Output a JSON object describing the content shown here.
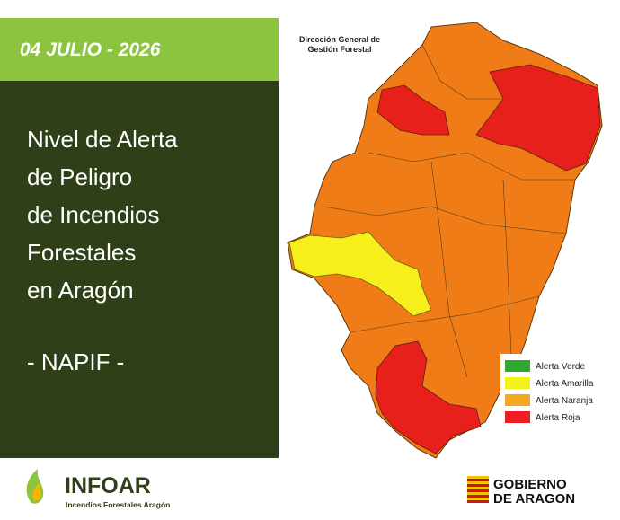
{
  "header": {
    "date": "04 JULIO - 2026"
  },
  "panel": {
    "title_lines": [
      "Nivel de Alerta",
      "de Peligro",
      "de Incendios",
      "Forestales",
      "en Aragón"
    ],
    "subtitle": "- NAPIF -"
  },
  "map": {
    "source_lines": [
      "Dirección General de",
      "Gestión Forestal"
    ],
    "legend": [
      {
        "label": "Alerta Verde",
        "color": "#2ea82e"
      },
      {
        "label": "Alerta Amarilla",
        "color": "#f5f21a"
      },
      {
        "label": "Alerta Naranja",
        "color": "#f5a623"
      },
      {
        "label": "Alerta Roja",
        "color": "#ee1c25"
      }
    ]
  },
  "footer": {
    "logo_name": "INFOAR",
    "logo_tagline": "Incendios Forestales Aragón",
    "government_lines": [
      "GOBIERNO",
      "DE ARAGON"
    ]
  }
}
